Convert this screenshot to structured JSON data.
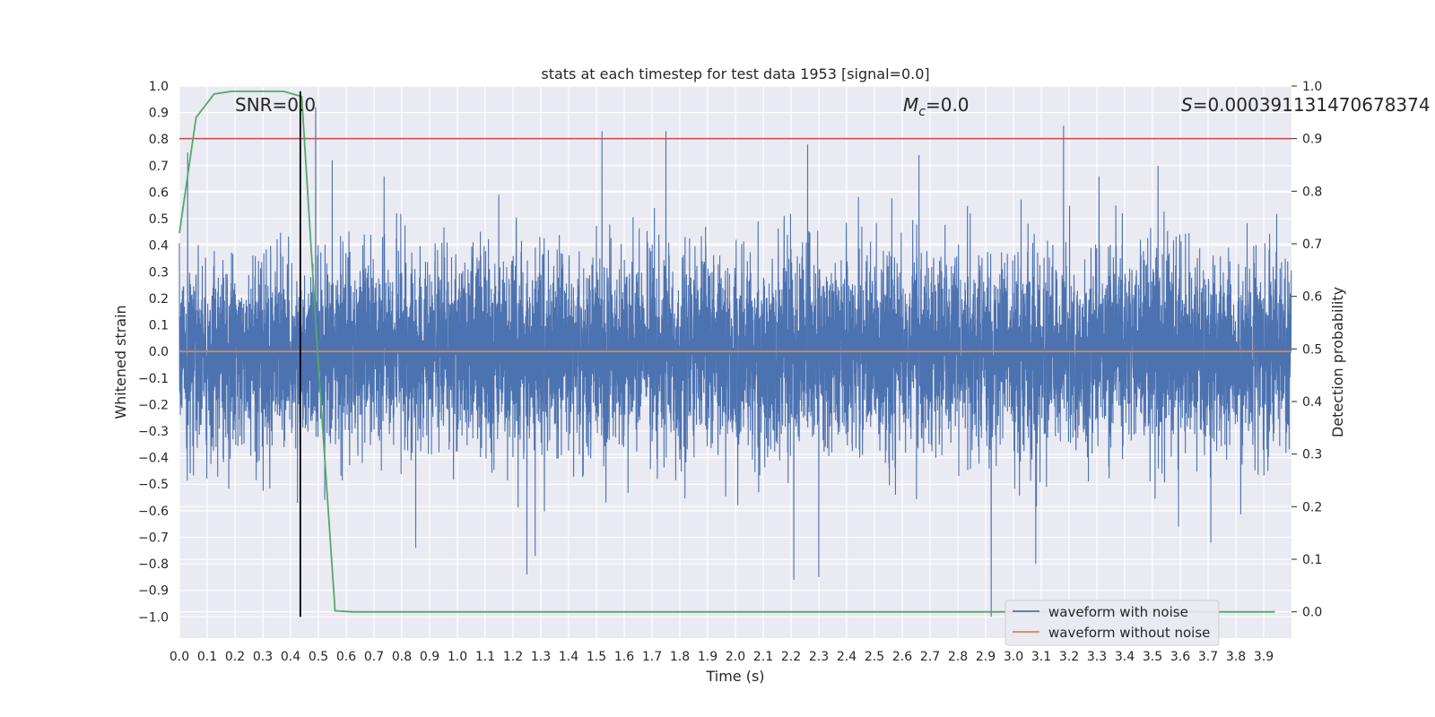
{
  "chart_data": {
    "type": "line",
    "title": "stats at each timestep for test data 1953 [signal=0.0]",
    "xlabel": "Time (s)",
    "ylabel_left": "Whitened strain",
    "ylabel_right": "Detection probability",
    "xlim": [
      0.0,
      4.0
    ],
    "ylim_left": [
      -1.08,
      1.0
    ],
    "ylim_right": [
      -0.05,
      1.0
    ],
    "x_ticks": [
      "0.0",
      "0.1",
      "0.2",
      "0.3",
      "0.4",
      "0.5",
      "0.6",
      "0.7",
      "0.8",
      "0.9",
      "1.0",
      "1.1",
      "1.2",
      "1.3",
      "1.4",
      "1.5",
      "1.6",
      "1.7",
      "1.8",
      "1.9",
      "2.0",
      "2.1",
      "2.2",
      "2.3",
      "2.4",
      "2.5",
      "2.6",
      "2.7",
      "2.8",
      "2.9",
      "3.0",
      "3.1",
      "3.2",
      "3.3",
      "3.4",
      "3.5",
      "3.6",
      "3.7",
      "3.8",
      "3.9"
    ],
    "y_ticks_left": [
      "1.0",
      "0.9",
      "0.8",
      "0.7",
      "0.6",
      "0.5",
      "0.4",
      "0.3",
      "0.2",
      "0.1",
      "0.0",
      "−0.1",
      "−0.2",
      "−0.3",
      "−0.4",
      "−0.5",
      "−0.6",
      "−0.7",
      "−0.8",
      "−0.9",
      "−1.0"
    ],
    "y_ticks_right": [
      "1.0",
      "0.9",
      "0.8",
      "0.7",
      "0.6",
      "0.5",
      "0.4",
      "0.3",
      "0.2",
      "0.1",
      "0.0"
    ],
    "annotations": {
      "snr": "SNR=0.0",
      "mc": "=0.0",
      "mc_symbol": "M",
      "mc_sub": "c",
      "s_symbol": "S",
      "s": "=0.000391131470678374"
    },
    "grid": true,
    "legend_position": "bottom-right",
    "legend": [
      "waveform with noise",
      "waveform without noise"
    ],
    "series": [
      {
        "name": "waveform with noise",
        "axis": "left",
        "color": "#4c72b0",
        "kind": "noise",
        "x_start": 0.0,
        "x_end": 4.0,
        "sample_rate": 2048,
        "baseline_sd": 0.18,
        "notable_peaks": [
          {
            "x": 0.03,
            "y": 0.75
          },
          {
            "x": 0.49,
            "y": 0.92
          },
          {
            "x": 0.55,
            "y": 0.72
          },
          {
            "x": 1.52,
            "y": 0.83
          },
          {
            "x": 1.75,
            "y": 0.83
          },
          {
            "x": 2.26,
            "y": 0.78
          },
          {
            "x": 2.66,
            "y": 0.74
          },
          {
            "x": 3.18,
            "y": 0.85
          },
          {
            "x": 3.52,
            "y": 0.7
          },
          {
            "x": 1.25,
            "y": -0.84
          },
          {
            "x": 1.28,
            "y": -0.77
          },
          {
            "x": 0.85,
            "y": -0.74
          },
          {
            "x": 2.21,
            "y": -0.86
          },
          {
            "x": 2.3,
            "y": -0.85
          },
          {
            "x": 2.92,
            "y": -1.0
          },
          {
            "x": 3.08,
            "y": -0.8
          },
          {
            "x": 3.71,
            "y": -0.72
          }
        ]
      },
      {
        "name": "waveform without noise",
        "axis": "left",
        "color": "#dd8452",
        "x": [
          0.0,
          4.0
        ],
        "y": [
          0.0,
          0.0
        ]
      },
      {
        "name": "detection probability",
        "axis": "right",
        "color": "#55a868",
        "x": [
          0.0,
          0.06,
          0.125,
          0.19,
          0.25,
          0.31,
          0.375,
          0.44,
          0.5,
          0.56,
          0.625,
          0.69,
          0.75,
          1.0,
          2.0,
          3.0,
          3.94
        ],
        "y": [
          0.72,
          0.94,
          0.985,
          0.99,
          0.99,
          0.99,
          0.99,
          0.98,
          0.47,
          0.002,
          0.0,
          0.0,
          0.0,
          0.0,
          0.0,
          0.0,
          0.0
        ]
      }
    ],
    "threshold": {
      "axis": "right",
      "value": 0.9,
      "color": "#c44e52"
    },
    "vline": {
      "x": 0.435,
      "from_left_y": -1.0,
      "to_right_y": 0.99,
      "color": "#000000"
    }
  }
}
